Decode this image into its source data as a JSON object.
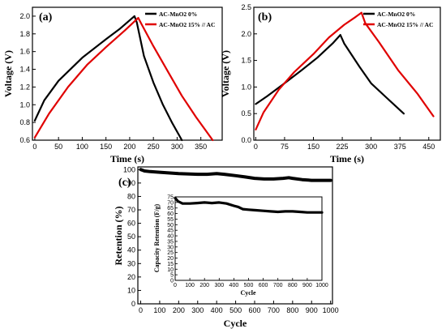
{
  "chart_data": [
    {
      "type": "line",
      "panel_label": "(a)",
      "xlabel": "Time (s)",
      "ylabel": "Voltage (V)",
      "xlim": [
        -5,
        395
      ],
      "ylim": [
        0.6,
        2.1
      ],
      "xticks": [
        0,
        50,
        100,
        150,
        200,
        250,
        300,
        350
      ],
      "yticks": [
        0.6,
        0.8,
        1.0,
        1.2,
        1.4,
        1.6,
        1.8,
        2.0
      ],
      "legend_position": "top-right",
      "series": [
        {
          "name": "AC-MnO2 0%",
          "color": "#000000",
          "points": [
            [
              0,
              0.82
            ],
            [
              20,
              1.05
            ],
            [
              50,
              1.27
            ],
            [
              100,
              1.53
            ],
            [
              150,
              1.74
            ],
            [
              180,
              1.86
            ],
            [
              210,
              2.0
            ],
            [
              215,
              1.93
            ],
            [
              230,
              1.55
            ],
            [
              250,
              1.25
            ],
            [
              270,
              1.0
            ],
            [
              290,
              0.79
            ],
            [
              310,
              0.6
            ]
          ]
        },
        {
          "name": "AC-MnO2 15% // AC",
          "color": "#e00000",
          "points": [
            [
              0,
              0.63
            ],
            [
              30,
              0.9
            ],
            [
              70,
              1.2
            ],
            [
              110,
              1.45
            ],
            [
              150,
              1.65
            ],
            [
              190,
              1.84
            ],
            [
              218,
              1.98
            ],
            [
              225,
              1.91
            ],
            [
              250,
              1.66
            ],
            [
              280,
              1.38
            ],
            [
              310,
              1.1
            ],
            [
              340,
              0.86
            ],
            [
              375,
              0.6
            ]
          ]
        }
      ]
    },
    {
      "type": "line",
      "panel_label": "(b)",
      "xlabel": "Time (s)",
      "ylabel": "Voltage (V)",
      "xlim": [
        -5,
        480
      ],
      "ylim": [
        0.0,
        2.5
      ],
      "xticks": [
        0,
        75,
        150,
        225,
        300,
        375,
        450
      ],
      "yticks": [
        0.0,
        0.5,
        1.0,
        1.5,
        2.0,
        2.5
      ],
      "legend_position": "top-right",
      "series": [
        {
          "name": "AC-MnO2 0%",
          "color": "#000000",
          "points": [
            [
              0,
              0.68
            ],
            [
              30,
              0.83
            ],
            [
              75,
              1.07
            ],
            [
              120,
              1.32
            ],
            [
              160,
              1.55
            ],
            [
              200,
              1.82
            ],
            [
              220,
              1.98
            ],
            [
              230,
              1.82
            ],
            [
              270,
              1.38
            ],
            [
              300,
              1.07
            ],
            [
              340,
              0.8
            ],
            [
              385,
              0.5
            ]
          ]
        },
        {
          "name": "AC-MnO2 15% // AC",
          "color": "#e00000",
          "points": [
            [
              0,
              0.2
            ],
            [
              20,
              0.52
            ],
            [
              60,
              0.95
            ],
            [
              100,
              1.28
            ],
            [
              150,
              1.62
            ],
            [
              190,
              1.93
            ],
            [
              230,
              2.17
            ],
            [
              260,
              2.32
            ],
            [
              275,
              2.4
            ],
            [
              285,
              2.2
            ],
            [
              320,
              1.85
            ],
            [
              370,
              1.32
            ],
            [
              420,
              0.88
            ],
            [
              462,
              0.45
            ]
          ]
        }
      ]
    },
    {
      "type": "line",
      "panel_label": "(c)",
      "xlabel": "Cycle",
      "ylabel": "Retention (%)",
      "xlim": [
        -15,
        1010
      ],
      "ylim": [
        0,
        102
      ],
      "xticks": [
        0,
        100,
        200,
        300,
        400,
        500,
        600,
        700,
        800,
        900,
        1000
      ],
      "yticks": [
        0,
        10,
        20,
        30,
        40,
        50,
        60,
        70,
        80,
        90,
        100
      ],
      "series": [
        {
          "name": "Retention",
          "color": "#000000",
          "points": [
            [
              0,
              100
            ],
            [
              20,
              99
            ],
            [
              50,
              98.5
            ],
            [
              100,
              98
            ],
            [
              200,
              97
            ],
            [
              300,
              96.5
            ],
            [
              350,
              96.5
            ],
            [
              400,
              97
            ],
            [
              440,
              96.5
            ],
            [
              500,
              95.5
            ],
            [
              550,
              94.5
            ],
            [
              600,
              93.5
            ],
            [
              650,
              93
            ],
            [
              700,
              93
            ],
            [
              750,
              93.5
            ],
            [
              780,
              94
            ],
            [
              800,
              93.5
            ],
            [
              850,
              92.5
            ],
            [
              900,
              92
            ],
            [
              950,
              92
            ],
            [
              1000,
              92
            ]
          ]
        }
      ],
      "inset": {
        "xlabel": "Cycle",
        "ylabel": "Capacity Retention (F/g)",
        "xlim": [
          0,
          1000
        ],
        "ylim": [
          0,
          75
        ],
        "xticks": [
          0,
          100,
          200,
          300,
          400,
          500,
          600,
          700,
          800,
          900,
          1000
        ],
        "yticks": [
          0,
          5,
          10,
          15,
          20,
          25,
          30,
          35,
          40,
          45,
          50,
          55,
          60,
          65,
          70,
          75
        ],
        "points": [
          [
            0,
            74
          ],
          [
            20,
            71
          ],
          [
            50,
            69
          ],
          [
            100,
            69
          ],
          [
            150,
            69.5
          ],
          [
            200,
            70
          ],
          [
            250,
            69.5
          ],
          [
            300,
            70
          ],
          [
            350,
            69
          ],
          [
            400,
            67
          ],
          [
            430,
            66
          ],
          [
            460,
            64
          ],
          [
            500,
            63.5
          ],
          [
            550,
            63
          ],
          [
            600,
            62.5
          ],
          [
            650,
            62
          ],
          [
            700,
            61.5
          ],
          [
            750,
            62
          ],
          [
            800,
            62
          ],
          [
            850,
            61.5
          ],
          [
            900,
            61
          ],
          [
            950,
            61
          ],
          [
            1000,
            61
          ]
        ]
      }
    }
  ]
}
